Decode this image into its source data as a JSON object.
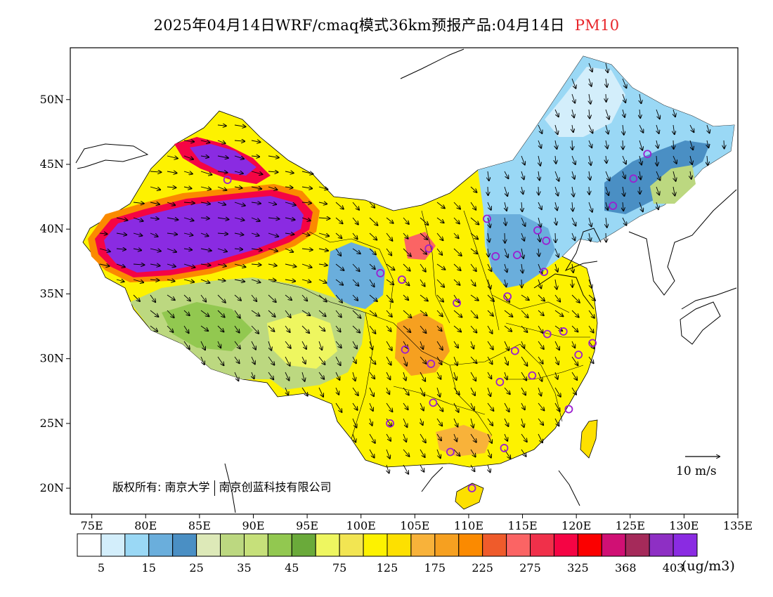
{
  "title": {
    "main": "2025年04月14日WRF/cmaq模式36km预报产品:04月14日",
    "species": "PM10"
  },
  "map_axes": {
    "lon_ticks": [
      "75E",
      "80E",
      "85E",
      "90E",
      "95E",
      "100E",
      "105E",
      "110E",
      "115E",
      "120E",
      "125E",
      "130E",
      "135E"
    ],
    "lat_ticks": [
      "50N",
      "45N",
      "40N",
      "35N",
      "30N",
      "25N",
      "20N"
    ],
    "lon_range": [
      73,
      135
    ],
    "lat_range": [
      18,
      54
    ]
  },
  "copyright": {
    "owner_label": "版权所有:",
    "org1": "南京大学",
    "org2": "南京创蓝科技有限公司"
  },
  "wind_scale": {
    "label": "10 m/s"
  },
  "colorbar": {
    "unit": "(ug/m3)",
    "labels": [
      "5",
      "15",
      "25",
      "35",
      "45",
      "75",
      "125",
      "175",
      "225",
      "275",
      "325",
      "368",
      "403"
    ],
    "colors": [
      "#ffffff",
      "#d3eefb",
      "#9ad8f5",
      "#6aaedc",
      "#4a8fc4",
      "#dde9b8",
      "#bcd880",
      "#c6e07a",
      "#92c850",
      "#6aaa3a",
      "#eef660",
      "#f2e552",
      "#fdf200",
      "#fde000",
      "#f8b23a",
      "#f6a020",
      "#fb8a00",
      "#ef5b2b",
      "#fb6464",
      "#f0304a",
      "#f50444",
      "#fb0000",
      "#d01074",
      "#a52a5a",
      "#8e2fc4",
      "#8a2be2"
    ]
  },
  "stations": [
    [
      87.6,
      43.8
    ],
    [
      101.8,
      36.6
    ],
    [
      103.8,
      36.1
    ],
    [
      106.3,
      38.5
    ],
    [
      108.9,
      34.3
    ],
    [
      104.1,
      30.7
    ],
    [
      106.5,
      29.6
    ],
    [
      106.7,
      26.6
    ],
    [
      102.7,
      25.0
    ],
    [
      108.3,
      22.8
    ],
    [
      110.3,
      20.0
    ],
    [
      113.3,
      23.1
    ],
    [
      112.9,
      28.2
    ],
    [
      114.3,
      30.6
    ],
    [
      115.9,
      28.7
    ],
    [
      117.3,
      31.9
    ],
    [
      118.8,
      32.1
    ],
    [
      120.2,
      30.3
    ],
    [
      121.5,
      31.2
    ],
    [
      119.3,
      26.1
    ],
    [
      113.6,
      34.8
    ],
    [
      114.5,
      38.0
    ],
    [
      112.5,
      37.9
    ],
    [
      111.7,
      40.8
    ],
    [
      116.4,
      39.9
    ],
    [
      117.2,
      39.1
    ],
    [
      117.0,
      36.7
    ],
    [
      123.4,
      41.8
    ],
    [
      125.3,
      43.9
    ],
    [
      126.6,
      45.8
    ]
  ]
}
